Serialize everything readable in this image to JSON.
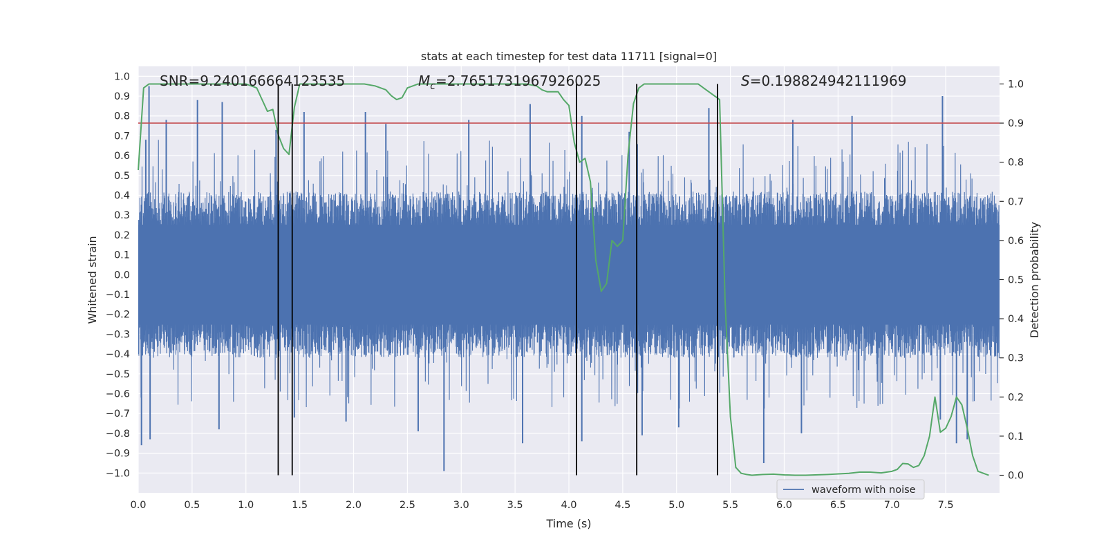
{
  "chart_data": {
    "type": "line",
    "title": "stats at each timestep for test data 11711 [signal=0]",
    "xlabel": "Time (s)",
    "ylabel": "Whitened strain",
    "y2label": "Detection probability",
    "xlim": [
      0.0,
      8.0
    ],
    "ylim": [
      -1.1,
      1.05
    ],
    "y2lim": [
      -0.045,
      1.045
    ],
    "xticks": [
      0.0,
      0.5,
      1.0,
      1.5,
      2.0,
      2.5,
      3.0,
      3.5,
      4.0,
      4.5,
      5.0,
      5.5,
      6.0,
      6.5,
      7.0,
      7.5
    ],
    "xtick_labels": [
      "0.0",
      "0.5",
      "1.0",
      "1.5",
      "2.0",
      "2.5",
      "3.0",
      "3.5",
      "4.0",
      "4.5",
      "5.0",
      "5.5",
      "6.0",
      "6.5",
      "7.0",
      "7.5"
    ],
    "yticks": [
      1.0,
      0.9,
      0.8,
      0.7,
      0.6,
      0.5,
      0.4,
      0.3,
      0.2,
      0.1,
      0.0,
      -0.1,
      -0.2,
      -0.3,
      -0.4,
      -0.5,
      -0.6,
      -0.7,
      -0.8,
      -0.9,
      -1.0
    ],
    "ytick_labels": [
      "1.0",
      "0.9",
      "0.8",
      "0.7",
      "0.6",
      "0.5",
      "0.4",
      "0.3",
      "0.2",
      "0.1",
      "0.0",
      "−0.1",
      "−0.2",
      "−0.3",
      "−0.4",
      "−0.5",
      "−0.6",
      "−0.7",
      "−0.8",
      "−0.9",
      "−1.0"
    ],
    "y2ticks": [
      1.0,
      0.9,
      0.8,
      0.7,
      0.6,
      0.5,
      0.4,
      0.3,
      0.2,
      0.1,
      0.0
    ],
    "y2tick_labels": [
      "1.0",
      "0.9",
      "0.8",
      "0.7",
      "0.6",
      "0.5",
      "0.4",
      "0.3",
      "0.2",
      "0.1",
      "0.0"
    ],
    "annotations": {
      "snr": "SNR=9.240166664123535",
      "mc_symbol": "M",
      "mc_sub": "c",
      "mc_value": "=2.7651731967926025",
      "s_symbol": "S",
      "s_value": "=0.198824942111969"
    },
    "waveform": {
      "name": "waveform with noise",
      "color": "#4c72b0",
      "x_range": [
        0.0,
        8.0
      ],
      "samples": 4096,
      "envelope": [
        0.42,
        -0.42
      ],
      "peaks": [
        [
          0.07,
          0.68
        ],
        [
          0.1,
          0.95
        ],
        [
          0.26,
          0.78
        ],
        [
          0.55,
          0.88
        ],
        [
          0.78,
          0.87
        ],
        [
          1.28,
          0.73
        ],
        [
          1.54,
          0.82
        ],
        [
          2.11,
          0.82
        ],
        [
          2.3,
          0.76
        ],
        [
          3.07,
          0.78
        ],
        [
          3.64,
          0.86
        ],
        [
          4.12,
          0.8
        ],
        [
          4.56,
          0.72
        ],
        [
          5.3,
          0.84
        ],
        [
          6.08,
          0.78
        ],
        [
          6.63,
          0.8
        ],
        [
          7.47,
          0.9
        ],
        [
          0.03,
          -0.86
        ],
        [
          0.11,
          -0.83
        ],
        [
          0.75,
          -0.78
        ],
        [
          1.45,
          -0.72
        ],
        [
          1.93,
          -0.74
        ],
        [
          2.6,
          -0.79
        ],
        [
          2.84,
          -0.99
        ],
        [
          3.57,
          -0.85
        ],
        [
          4.12,
          -0.84
        ],
        [
          4.68,
          -0.81
        ],
        [
          5.02,
          -0.77
        ],
        [
          5.81,
          -0.95
        ],
        [
          6.16,
          -0.8
        ],
        [
          7.45,
          -0.73
        ],
        [
          7.6,
          -0.85
        ],
        [
          7.7,
          -0.83
        ]
      ]
    },
    "threshold": {
      "color": "#c44e52",
      "value": 0.9
    },
    "detection_probability": {
      "color": "#55a868",
      "x": [
        0.0,
        0.05,
        0.1,
        0.2,
        0.4,
        0.6,
        0.8,
        1.0,
        1.1,
        1.15,
        1.2,
        1.25,
        1.3,
        1.35,
        1.4,
        1.45,
        1.5,
        1.55,
        1.6,
        1.8,
        2.0,
        2.1,
        2.2,
        2.3,
        2.35,
        2.4,
        2.45,
        2.5,
        2.55,
        2.6,
        2.7,
        2.8,
        3.0,
        3.2,
        3.4,
        3.6,
        3.7,
        3.75,
        3.8,
        3.85,
        3.9,
        3.95,
        4.0,
        4.05,
        4.1,
        4.15,
        4.2,
        4.25,
        4.3,
        4.35,
        4.4,
        4.45,
        4.5,
        4.55,
        4.6,
        4.65,
        4.7,
        4.75,
        4.8,
        4.9,
        5.0,
        5.1,
        5.2,
        5.25,
        5.3,
        5.35,
        5.4,
        5.45,
        5.5,
        5.55,
        5.6,
        5.65,
        5.7,
        5.8,
        5.9,
        6.0,
        6.1,
        6.2,
        6.4,
        6.6,
        6.7,
        6.8,
        6.9,
        7.0,
        7.05,
        7.1,
        7.15,
        7.2,
        7.25,
        7.3,
        7.35,
        7.4,
        7.45,
        7.5,
        7.55,
        7.6,
        7.65,
        7.7,
        7.75,
        7.8,
        7.85,
        7.9
      ],
      "y": [
        0.78,
        0.99,
        1.0,
        1.0,
        1.0,
        1.0,
        1.0,
        1.0,
        0.99,
        0.96,
        0.93,
        0.935,
        0.87,
        0.835,
        0.82,
        0.94,
        1.0,
        1.0,
        1.0,
        1.0,
        1.0,
        1.0,
        0.995,
        0.985,
        0.97,
        0.96,
        0.965,
        0.99,
        0.995,
        1.0,
        1.0,
        1.0,
        1.0,
        1.0,
        1.0,
        1.0,
        0.995,
        0.985,
        0.98,
        0.98,
        0.98,
        0.96,
        0.945,
        0.85,
        0.8,
        0.81,
        0.75,
        0.55,
        0.47,
        0.49,
        0.6,
        0.585,
        0.6,
        0.82,
        0.95,
        0.99,
        1.0,
        1.0,
        1.0,
        1.0,
        1.0,
        1.0,
        1.0,
        0.99,
        0.98,
        0.97,
        0.96,
        0.45,
        0.15,
        0.02,
        0.005,
        0.002,
        0.0,
        0.002,
        0.003,
        0.001,
        0.0,
        0.0,
        0.002,
        0.005,
        0.008,
        0.008,
        0.006,
        0.01,
        0.015,
        0.03,
        0.029,
        0.02,
        0.025,
        0.05,
        0.1,
        0.2,
        0.11,
        0.12,
        0.15,
        0.2,
        0.18,
        0.12,
        0.05,
        0.01,
        0.005,
        0.0
      ]
    },
    "event_lines": [
      1.3,
      1.43,
      4.07,
      4.63,
      5.38
    ],
    "legend": {
      "location": "lower-right",
      "entries": [
        "waveform with noise"
      ]
    }
  },
  "theme": {
    "plot_background": "#eaeaf2",
    "grid_color": "#ffffff",
    "event_line_color": "#000000"
  }
}
